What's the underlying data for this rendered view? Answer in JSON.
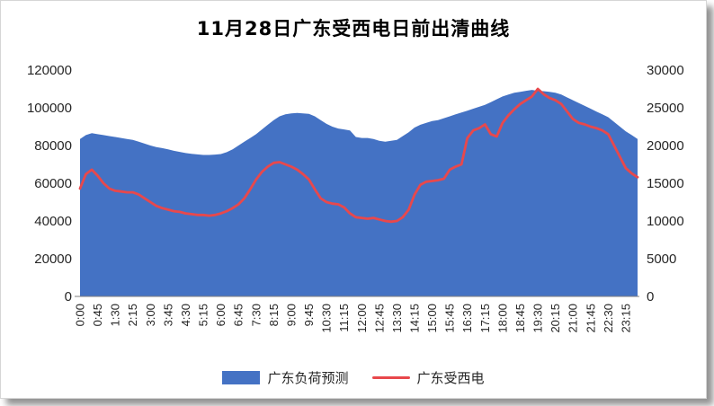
{
  "chart": {
    "title": "11月28日广东受西电日前出清曲线",
    "legend": [
      {
        "label": "广东负荷预测",
        "color": "#4472C4",
        "type": "area"
      },
      {
        "label": "广东受西电",
        "color": "#E8484C",
        "type": "line"
      }
    ]
  },
  "chart_data": {
    "type": "area+line combo",
    "title": "11月28日广东受西电日前出清曲线",
    "left_axis": {
      "min": 0,
      "max": 120000,
      "ticks": [
        0,
        20000,
        40000,
        60000,
        80000,
        100000,
        120000
      ]
    },
    "right_axis": {
      "min": 0,
      "max": 30000,
      "ticks": [
        0,
        5000,
        10000,
        15000,
        20000,
        25000,
        30000
      ]
    },
    "x_tick_step": 3,
    "grid": false,
    "legend_position": "bottom",
    "x": [
      "0:00",
      "0:15",
      "0:30",
      "0:45",
      "1:00",
      "1:15",
      "1:30",
      "1:45",
      "2:00",
      "2:15",
      "2:30",
      "2:45",
      "3:00",
      "3:15",
      "3:30",
      "3:45",
      "4:00",
      "4:15",
      "4:30",
      "4:45",
      "5:00",
      "5:15",
      "5:30",
      "5:45",
      "6:00",
      "6:15",
      "6:30",
      "6:45",
      "7:00",
      "7:15",
      "7:30",
      "7:45",
      "8:00",
      "8:15",
      "8:30",
      "8:45",
      "9:00",
      "9:15",
      "9:30",
      "9:45",
      "10:00",
      "10:15",
      "10:30",
      "10:45",
      "11:00",
      "11:15",
      "11:30",
      "11:45",
      "12:00",
      "12:15",
      "12:30",
      "12:45",
      "13:00",
      "13:15",
      "13:30",
      "13:45",
      "14:00",
      "14:15",
      "14:30",
      "14:45",
      "15:00",
      "15:15",
      "15:30",
      "15:45",
      "16:00",
      "16:15",
      "16:30",
      "16:45",
      "17:00",
      "17:15",
      "17:30",
      "17:45",
      "18:00",
      "18:15",
      "18:30",
      "18:45",
      "19:00",
      "19:15",
      "19:30",
      "19:45",
      "20:00",
      "20:15",
      "20:30",
      "20:45",
      "21:00",
      "21:15",
      "21:30",
      "21:45",
      "22:00",
      "22:15",
      "22:30",
      "22:45",
      "23:00",
      "23:15",
      "23:30",
      "23:45"
    ],
    "series": [
      {
        "name": "广东负荷预测",
        "axis": "left",
        "type": "area",
        "color": "#4472C4",
        "values": [
          83500,
          85500,
          86500,
          86000,
          85500,
          85000,
          84500,
          84000,
          83500,
          83000,
          82000,
          81000,
          80000,
          79200,
          78600,
          78000,
          77200,
          76600,
          76000,
          75600,
          75300,
          75000,
          75000,
          75200,
          75500,
          76500,
          78000,
          80000,
          82000,
          84000,
          86000,
          88500,
          91000,
          93500,
          95500,
          96500,
          97000,
          97300,
          97000,
          96800,
          95500,
          93500,
          91500,
          90000,
          89000,
          88500,
          88000,
          84500,
          84000,
          84000,
          83500,
          82500,
          82000,
          82500,
          83000,
          85000,
          87000,
          89500,
          91000,
          92000,
          93000,
          93500,
          94500,
          95500,
          96500,
          97500,
          98500,
          99500,
          100500,
          101500,
          103000,
          104500,
          106000,
          107000,
          108000,
          108500,
          109000,
          109500,
          109000,
          108800,
          108500,
          108000,
          107000,
          105500,
          104000,
          102500,
          101000,
          99500,
          98000,
          96500,
          95000,
          92500,
          90000,
          87500,
          85500,
          83500
        ]
      },
      {
        "name": "广东受西电",
        "axis": "right",
        "type": "line",
        "color": "#E8484C",
        "values": [
          14300,
          16200,
          16800,
          16000,
          15000,
          14300,
          14000,
          13900,
          13800,
          13800,
          13500,
          13000,
          12500,
          12000,
          11700,
          11500,
          11300,
          11200,
          11000,
          10900,
          10800,
          10800,
          10700,
          10800,
          11000,
          11300,
          11700,
          12200,
          13000,
          14200,
          15500,
          16500,
          17200,
          17700,
          17800,
          17500,
          17200,
          16800,
          16200,
          15500,
          14200,
          13000,
          12500,
          12300,
          12200,
          11800,
          11000,
          10500,
          10400,
          10300,
          10400,
          10200,
          10000,
          9900,
          10000,
          10500,
          11500,
          13500,
          14800,
          15200,
          15300,
          15400,
          15600,
          16800,
          17200,
          17500,
          21000,
          22000,
          22300,
          22800,
          21500,
          21200,
          23000,
          24000,
          24800,
          25500,
          26000,
          26500,
          27500,
          26800,
          26300,
          26000,
          25500,
          24500,
          23500,
          23000,
          22800,
          22500,
          22300,
          22000,
          21500,
          20000,
          18500,
          17000,
          16300,
          15800
        ]
      }
    ]
  }
}
